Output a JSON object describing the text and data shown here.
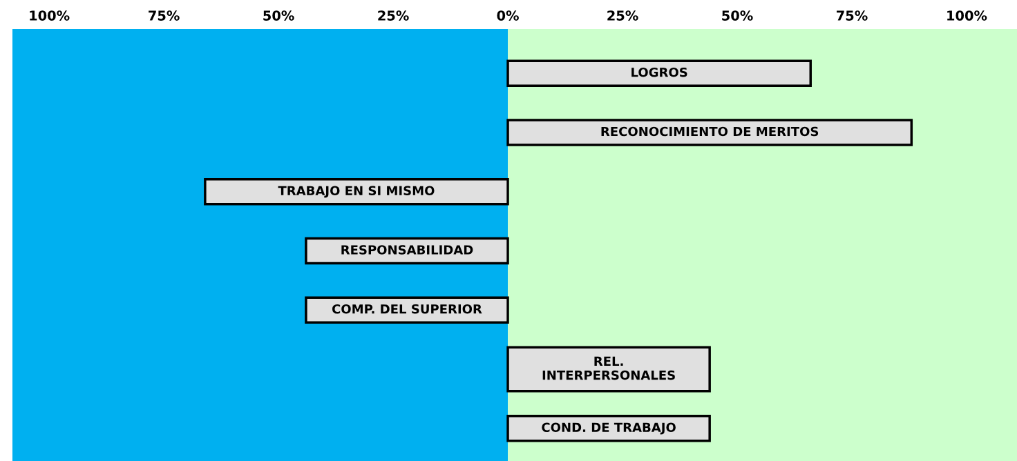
{
  "chart_data": {
    "type": "bar",
    "orientation": "horizontal",
    "categories": [
      "LOGROS",
      "RECONOCIMIENTO DE MERITOS",
      "TRABAJO EN SI MISMO",
      "RESPONSABILIDAD",
      "COMP. DEL SUPERIOR",
      "REL.\nINTERPERSONALES",
      "COND. DE TRABAJO"
    ],
    "values": [
      66,
      88,
      -66,
      -44,
      -44,
      44,
      44
    ],
    "color": "#e0e0e0",
    "xlim": [
      -108,
      111
    ],
    "xticks": [
      {
        "value": -100,
        "label": "100%"
      },
      {
        "value": -75,
        "label": "75%"
      },
      {
        "value": -50,
        "label": "50%"
      },
      {
        "value": -25,
        "label": "25%"
      },
      {
        "value": 0,
        "label": "0%"
      },
      {
        "value": 25,
        "label": "25%"
      },
      {
        "value": 50,
        "label": "50%"
      },
      {
        "value": 75,
        "label": "75%"
      },
      {
        "value": 100,
        "label": "100%"
      }
    ],
    "bands": [
      {
        "axis": "x",
        "from": -108,
        "to": 0,
        "color": "#00b0f0"
      },
      {
        "axis": "x",
        "from": 0,
        "to": 111,
        "color": "#ccffcc"
      }
    ],
    "grid": false,
    "legend": false
  }
}
